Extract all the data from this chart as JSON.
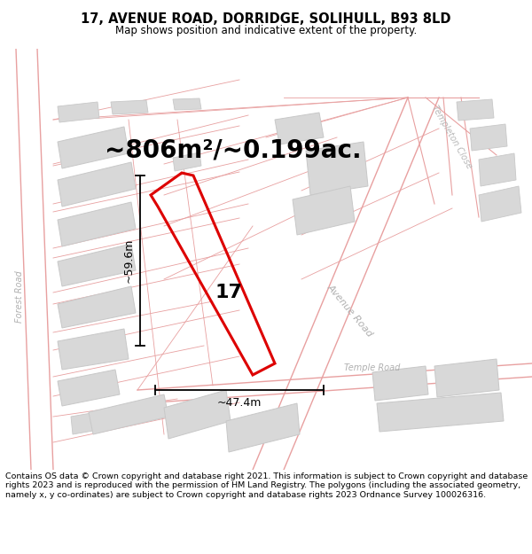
{
  "title": "17, AVENUE ROAD, DORRIDGE, SOLIHULL, B93 8LD",
  "subtitle": "Map shows position and indicative extent of the property.",
  "area_text": "~806m²/~0.199ac.",
  "label_17": "17",
  "dim_width": "~47.4m",
  "dim_height": "~59.6m",
  "road_label_avenue": "Avenue Road",
  "road_label_temple": "Temple Road",
  "road_label_forest": "Forest Road",
  "road_label_templeton": "Templeton Close",
  "footer": "Contains OS data © Crown copyright and database right 2021. This information is subject to Crown copyright and database rights 2023 and is reproduced with the permission of HM Land Registry. The polygons (including the associated geometry, namely x, y co-ordinates) are subject to Crown copyright and database rights 2023 Ordnance Survey 100026316.",
  "bg_color": "#f7f4f4",
  "map_bg": "#f7f4f4",
  "plot_color": "#dd0000",
  "building_fill": "#d8d8d8",
  "building_edge": "#c8c8c8",
  "road_line_color": "#e8a0a0",
  "parcel_line_color": "#e8a0a0",
  "dim_line_color": "#000000",
  "title_fontsize": 10.5,
  "subtitle_fontsize": 8.5,
  "area_fontsize": 20,
  "footer_fontsize": 6.8
}
